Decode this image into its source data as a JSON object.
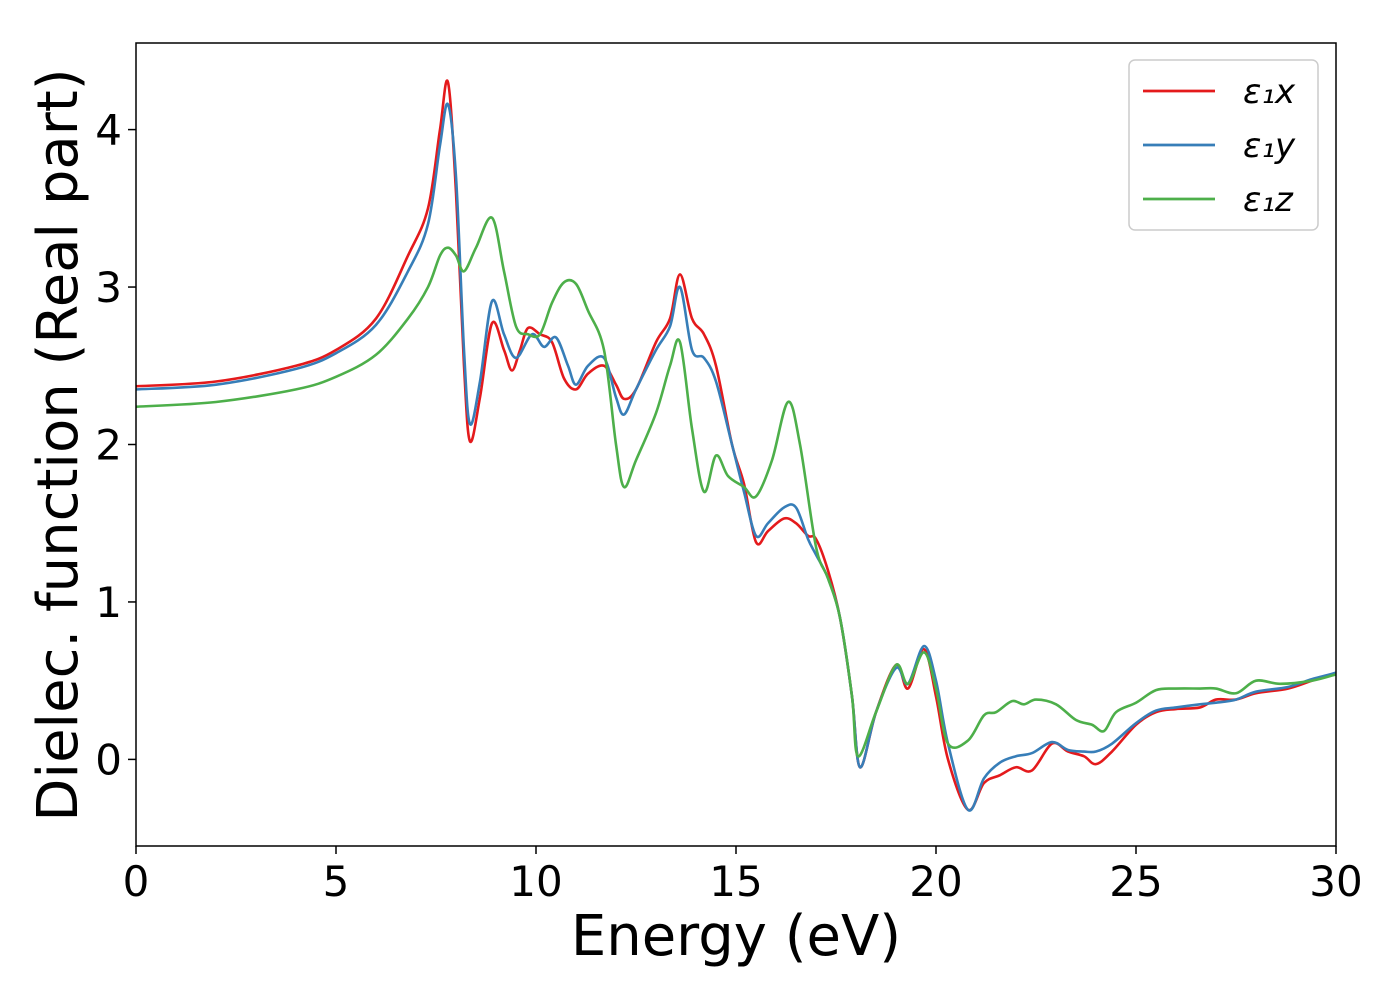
{
  "chart_data": {
    "type": "line",
    "title": "",
    "xlabel": "Energy (eV)",
    "ylabel": "Dielec. function (Real part)",
    "xlim": [
      0,
      30
    ],
    "ylim": [
      -0.55,
      4.55
    ],
    "xticks": [
      0,
      5,
      10,
      15,
      20,
      25,
      30
    ],
    "yticks": [
      0,
      1,
      2,
      3,
      4
    ],
    "grid": false,
    "legend_position": "top-right",
    "series": [
      {
        "name": "ε₁x",
        "color": "#e41a1c",
        "points": [
          [
            0,
            2.37
          ],
          [
            2,
            2.4
          ],
          [
            4,
            2.5
          ],
          [
            5,
            2.6
          ],
          [
            6,
            2.8
          ],
          [
            6.8,
            3.2
          ],
          [
            7.3,
            3.5
          ],
          [
            7.6,
            4.0
          ],
          [
            7.8,
            4.3
          ],
          [
            8.0,
            3.6
          ],
          [
            8.2,
            2.5
          ],
          [
            8.35,
            2.02
          ],
          [
            8.6,
            2.3
          ],
          [
            8.9,
            2.77
          ],
          [
            9.2,
            2.6
          ],
          [
            9.4,
            2.47
          ],
          [
            9.6,
            2.6
          ],
          [
            9.8,
            2.74
          ],
          [
            10.1,
            2.7
          ],
          [
            10.4,
            2.65
          ],
          [
            10.7,
            2.42
          ],
          [
            11.0,
            2.35
          ],
          [
            11.3,
            2.45
          ],
          [
            11.7,
            2.5
          ],
          [
            12.0,
            2.38
          ],
          [
            12.2,
            2.29
          ],
          [
            12.5,
            2.35
          ],
          [
            13.0,
            2.65
          ],
          [
            13.35,
            2.8
          ],
          [
            13.6,
            3.08
          ],
          [
            13.9,
            2.8
          ],
          [
            14.2,
            2.7
          ],
          [
            14.5,
            2.5
          ],
          [
            14.9,
            2.0
          ],
          [
            15.2,
            1.75
          ],
          [
            15.5,
            1.38
          ],
          [
            15.8,
            1.45
          ],
          [
            16.2,
            1.53
          ],
          [
            16.5,
            1.5
          ],
          [
            16.8,
            1.42
          ],
          [
            17.0,
            1.4
          ],
          [
            17.3,
            1.2
          ],
          [
            17.6,
            0.9
          ],
          [
            17.9,
            0.4
          ],
          [
            18.1,
            -0.05
          ],
          [
            18.5,
            0.3
          ],
          [
            19.0,
            0.6
          ],
          [
            19.3,
            0.45
          ],
          [
            19.7,
            0.7
          ],
          [
            20.0,
            0.4
          ],
          [
            20.3,
            0.0
          ],
          [
            20.8,
            -0.32
          ],
          [
            21.2,
            -0.15
          ],
          [
            21.6,
            -0.1
          ],
          [
            22.0,
            -0.05
          ],
          [
            22.4,
            -0.07
          ],
          [
            22.9,
            0.1
          ],
          [
            23.3,
            0.05
          ],
          [
            23.7,
            0.02
          ],
          [
            24.0,
            -0.03
          ],
          [
            24.4,
            0.05
          ],
          [
            25.0,
            0.22
          ],
          [
            25.5,
            0.3
          ],
          [
            26.0,
            0.32
          ],
          [
            26.6,
            0.33
          ],
          [
            27.0,
            0.38
          ],
          [
            27.5,
            0.38
          ],
          [
            28.0,
            0.42
          ],
          [
            28.8,
            0.45
          ],
          [
            29.4,
            0.5
          ],
          [
            30.0,
            0.55
          ]
        ]
      },
      {
        "name": "ε₁y",
        "color": "#377eb8",
        "points": [
          [
            0,
            2.35
          ],
          [
            2,
            2.38
          ],
          [
            4,
            2.48
          ],
          [
            5,
            2.58
          ],
          [
            6,
            2.76
          ],
          [
            6.8,
            3.1
          ],
          [
            7.3,
            3.4
          ],
          [
            7.6,
            3.9
          ],
          [
            7.8,
            4.16
          ],
          [
            8.0,
            3.7
          ],
          [
            8.2,
            2.6
          ],
          [
            8.35,
            2.13
          ],
          [
            8.6,
            2.4
          ],
          [
            8.9,
            2.91
          ],
          [
            9.2,
            2.7
          ],
          [
            9.5,
            2.55
          ],
          [
            9.9,
            2.7
          ],
          [
            10.2,
            2.62
          ],
          [
            10.5,
            2.68
          ],
          [
            10.8,
            2.5
          ],
          [
            11.0,
            2.38
          ],
          [
            11.3,
            2.5
          ],
          [
            11.7,
            2.55
          ],
          [
            12.0,
            2.3
          ],
          [
            12.2,
            2.19
          ],
          [
            12.5,
            2.35
          ],
          [
            13.0,
            2.6
          ],
          [
            13.35,
            2.75
          ],
          [
            13.6,
            3.0
          ],
          [
            13.9,
            2.6
          ],
          [
            14.2,
            2.55
          ],
          [
            14.5,
            2.4
          ],
          [
            14.9,
            2.0
          ],
          [
            15.2,
            1.7
          ],
          [
            15.5,
            1.42
          ],
          [
            15.8,
            1.5
          ],
          [
            16.2,
            1.6
          ],
          [
            16.5,
            1.6
          ],
          [
            16.8,
            1.4
          ],
          [
            17.0,
            1.3
          ],
          [
            17.3,
            1.15
          ],
          [
            17.6,
            0.9
          ],
          [
            17.9,
            0.4
          ],
          [
            18.1,
            -0.05
          ],
          [
            18.5,
            0.3
          ],
          [
            19.0,
            0.58
          ],
          [
            19.3,
            0.48
          ],
          [
            19.7,
            0.72
          ],
          [
            20.0,
            0.5
          ],
          [
            20.3,
            0.1
          ],
          [
            20.8,
            -0.32
          ],
          [
            21.2,
            -0.12
          ],
          [
            21.6,
            -0.02
          ],
          [
            22.0,
            0.02
          ],
          [
            22.4,
            0.04
          ],
          [
            22.9,
            0.11
          ],
          [
            23.3,
            0.06
          ],
          [
            23.7,
            0.05
          ],
          [
            24.0,
            0.05
          ],
          [
            24.4,
            0.1
          ],
          [
            25.0,
            0.23
          ],
          [
            25.5,
            0.31
          ],
          [
            26.0,
            0.33
          ],
          [
            26.6,
            0.35
          ],
          [
            27.0,
            0.36
          ],
          [
            27.5,
            0.38
          ],
          [
            28.0,
            0.43
          ],
          [
            28.8,
            0.46
          ],
          [
            29.4,
            0.51
          ],
          [
            30.0,
            0.55
          ]
        ]
      },
      {
        "name": "ε₁z",
        "color": "#4daf4a",
        "points": [
          [
            0,
            2.24
          ],
          [
            2,
            2.27
          ],
          [
            4,
            2.35
          ],
          [
            5,
            2.43
          ],
          [
            6,
            2.57
          ],
          [
            6.8,
            2.8
          ],
          [
            7.3,
            3.0
          ],
          [
            7.6,
            3.2
          ],
          [
            7.8,
            3.25
          ],
          [
            8.0,
            3.2
          ],
          [
            8.2,
            3.1
          ],
          [
            8.5,
            3.25
          ],
          [
            8.9,
            3.44
          ],
          [
            9.2,
            3.1
          ],
          [
            9.5,
            2.75
          ],
          [
            9.8,
            2.7
          ],
          [
            10.1,
            2.7
          ],
          [
            10.4,
            2.9
          ],
          [
            10.7,
            3.03
          ],
          [
            11.0,
            3.02
          ],
          [
            11.3,
            2.85
          ],
          [
            11.7,
            2.6
          ],
          [
            12.0,
            2.0
          ],
          [
            12.2,
            1.73
          ],
          [
            12.5,
            1.9
          ],
          [
            13.0,
            2.2
          ],
          [
            13.35,
            2.5
          ],
          [
            13.6,
            2.65
          ],
          [
            13.9,
            2.1
          ],
          [
            14.2,
            1.7
          ],
          [
            14.5,
            1.93
          ],
          [
            14.8,
            1.8
          ],
          [
            15.2,
            1.73
          ],
          [
            15.5,
            1.67
          ],
          [
            15.9,
            1.9
          ],
          [
            16.3,
            2.27
          ],
          [
            16.6,
            2.0
          ],
          [
            17.0,
            1.35
          ],
          [
            17.3,
            1.15
          ],
          [
            17.6,
            0.9
          ],
          [
            17.9,
            0.4
          ],
          [
            18.05,
            0.02
          ],
          [
            18.5,
            0.3
          ],
          [
            19.0,
            0.6
          ],
          [
            19.3,
            0.48
          ],
          [
            19.7,
            0.68
          ],
          [
            20.0,
            0.45
          ],
          [
            20.3,
            0.1
          ],
          [
            20.8,
            0.12
          ],
          [
            21.2,
            0.28
          ],
          [
            21.5,
            0.3
          ],
          [
            21.9,
            0.37
          ],
          [
            22.2,
            0.35
          ],
          [
            22.5,
            0.38
          ],
          [
            23.0,
            0.35
          ],
          [
            23.5,
            0.25
          ],
          [
            23.9,
            0.22
          ],
          [
            24.2,
            0.18
          ],
          [
            24.5,
            0.3
          ],
          [
            25.0,
            0.36
          ],
          [
            25.5,
            0.44
          ],
          [
            26.0,
            0.45
          ],
          [
            26.6,
            0.45
          ],
          [
            27.0,
            0.45
          ],
          [
            27.5,
            0.42
          ],
          [
            28.0,
            0.5
          ],
          [
            28.6,
            0.48
          ],
          [
            29.4,
            0.5
          ],
          [
            30.0,
            0.54
          ]
        ]
      }
    ]
  }
}
